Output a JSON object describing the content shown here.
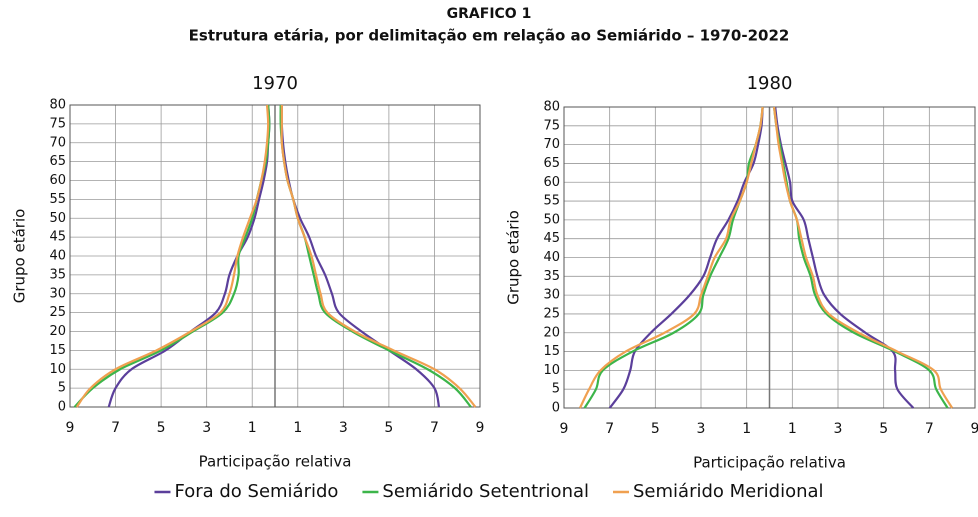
{
  "title": "GRAFICO 1",
  "subtitle": "Estrutura etária, por delimitação em relação ao Semiárido – 1970-2022",
  "chart_data": [
    {
      "type": "line",
      "title": "1970",
      "x_label": "Participação relativa",
      "y_label": "Grupo etário",
      "xlim": [
        -9,
        9
      ],
      "xticks": [
        {
          "value": -9,
          "label": "9"
        },
        {
          "value": -7,
          "label": "7"
        },
        {
          "value": -5,
          "label": "5"
        },
        {
          "value": -3,
          "label": "3"
        },
        {
          "value": -1,
          "label": "1"
        },
        1,
        3,
        5,
        7,
        9
      ],
      "ylim": [
        0,
        80
      ],
      "yticks": [
        0,
        5,
        10,
        15,
        20,
        25,
        30,
        35,
        40,
        45,
        50,
        55,
        60,
        65,
        70,
        75,
        80
      ],
      "grid": true,
      "y": [
        0,
        5,
        10,
        15,
        20,
        25,
        30,
        35,
        40,
        45,
        50,
        55,
        60,
        65,
        70,
        75,
        80
      ],
      "series": [
        {
          "name": "Fora do Semiárido",
          "color": "#5b3f9b",
          "left": [
            -7.3,
            -7.0,
            -6.3,
            -4.8,
            -3.7,
            -2.6,
            -2.2,
            -2.0,
            -1.65,
            -1.2,
            -0.9,
            -0.7,
            -0.5,
            -0.35,
            -0.3,
            -0.25,
            -0.3
          ],
          "right": [
            7.2,
            7.0,
            6.2,
            5.0,
            3.8,
            2.8,
            2.5,
            2.2,
            1.8,
            1.5,
            1.1,
            0.8,
            0.6,
            0.45,
            0.35,
            0.3,
            0.3
          ]
        },
        {
          "name": "Semiárido Setentrional",
          "color": "#3cb54a",
          "left": [
            -8.8,
            -8.0,
            -6.8,
            -5.0,
            -3.6,
            -2.3,
            -1.8,
            -1.6,
            -1.6,
            -1.3,
            -1.0,
            -0.8,
            -0.6,
            -0.4,
            -0.3,
            -0.25,
            -0.3
          ],
          "right": [
            8.6,
            7.9,
            6.7,
            5.0,
            3.4,
            2.2,
            1.9,
            1.7,
            1.5,
            1.3,
            1.0,
            0.8,
            0.55,
            0.4,
            0.3,
            0.25,
            0.25
          ]
        },
        {
          "name": "Semiárido Meridional",
          "color": "#f0a050",
          "left": [
            -8.7,
            -8.1,
            -7.0,
            -5.2,
            -3.7,
            -2.4,
            -2.0,
            -1.8,
            -1.65,
            -1.4,
            -1.1,
            -0.8,
            -0.6,
            -0.45,
            -0.35,
            -0.3,
            -0.35
          ],
          "right": [
            8.8,
            8.1,
            7.0,
            5.2,
            3.5,
            2.3,
            2.0,
            1.8,
            1.6,
            1.3,
            1.0,
            0.8,
            0.55,
            0.4,
            0.3,
            0.3,
            0.3
          ]
        }
      ]
    },
    {
      "type": "line",
      "title": "1980",
      "x_label": "Participação relativa",
      "y_label": "Grupo etário",
      "xlim": [
        -9,
        9
      ],
      "xticks": [
        {
          "value": -9,
          "label": "9"
        },
        {
          "value": -7,
          "label": "7"
        },
        {
          "value": -5,
          "label": "5"
        },
        {
          "value": -3,
          "label": "3"
        },
        {
          "value": -1,
          "label": "1"
        },
        1,
        3,
        5,
        7,
        9
      ],
      "ylim": [
        0,
        80
      ],
      "yticks": [
        0,
        5,
        10,
        15,
        20,
        25,
        30,
        35,
        40,
        45,
        50,
        55,
        60,
        65,
        70,
        75,
        80
      ],
      "grid": true,
      "y": [
        0,
        5,
        10,
        15,
        20,
        25,
        30,
        35,
        40,
        45,
        50,
        55,
        60,
        65,
        70,
        75,
        80
      ],
      "series": [
        {
          "name": "Fora do Semiárido",
          "color": "#5b3f9b",
          "left": [
            -7.0,
            -6.4,
            -6.1,
            -5.9,
            -5.2,
            -4.3,
            -3.5,
            -2.9,
            -2.6,
            -2.3,
            -1.8,
            -1.4,
            -1.1,
            -0.7,
            -0.5,
            -0.35,
            -0.3
          ],
          "right": [
            6.3,
            5.6,
            5.5,
            5.4,
            4.2,
            3.1,
            2.4,
            2.1,
            1.9,
            1.7,
            1.5,
            1.0,
            0.9,
            0.7,
            0.5,
            0.35,
            0.25
          ]
        },
        {
          "name": "Semiárido Setentrional",
          "color": "#3cb54a",
          "left": [
            -8.1,
            -7.6,
            -7.3,
            -6.0,
            -4.2,
            -3.1,
            -2.9,
            -2.6,
            -2.2,
            -1.8,
            -1.6,
            -1.3,
            -1.0,
            -0.9,
            -0.6,
            -0.4,
            -0.3
          ],
          "right": [
            7.8,
            7.3,
            7.0,
            5.5,
            3.7,
            2.5,
            2.0,
            1.8,
            1.5,
            1.3,
            1.2,
            0.9,
            0.75,
            0.6,
            0.45,
            0.3,
            0.2
          ]
        },
        {
          "name": "Semiárido Meridional",
          "color": "#f0a050",
          "left": [
            -8.3,
            -7.9,
            -7.4,
            -6.3,
            -4.6,
            -3.3,
            -3.0,
            -2.7,
            -2.4,
            -1.9,
            -1.7,
            -1.3,
            -1.0,
            -0.8,
            -0.6,
            -0.4,
            -0.3
          ],
          "right": [
            8.0,
            7.5,
            7.2,
            5.6,
            3.9,
            2.6,
            2.1,
            1.9,
            1.6,
            1.4,
            1.2,
            0.9,
            0.7,
            0.55,
            0.4,
            0.3,
            0.2
          ]
        }
      ]
    }
  ]
}
